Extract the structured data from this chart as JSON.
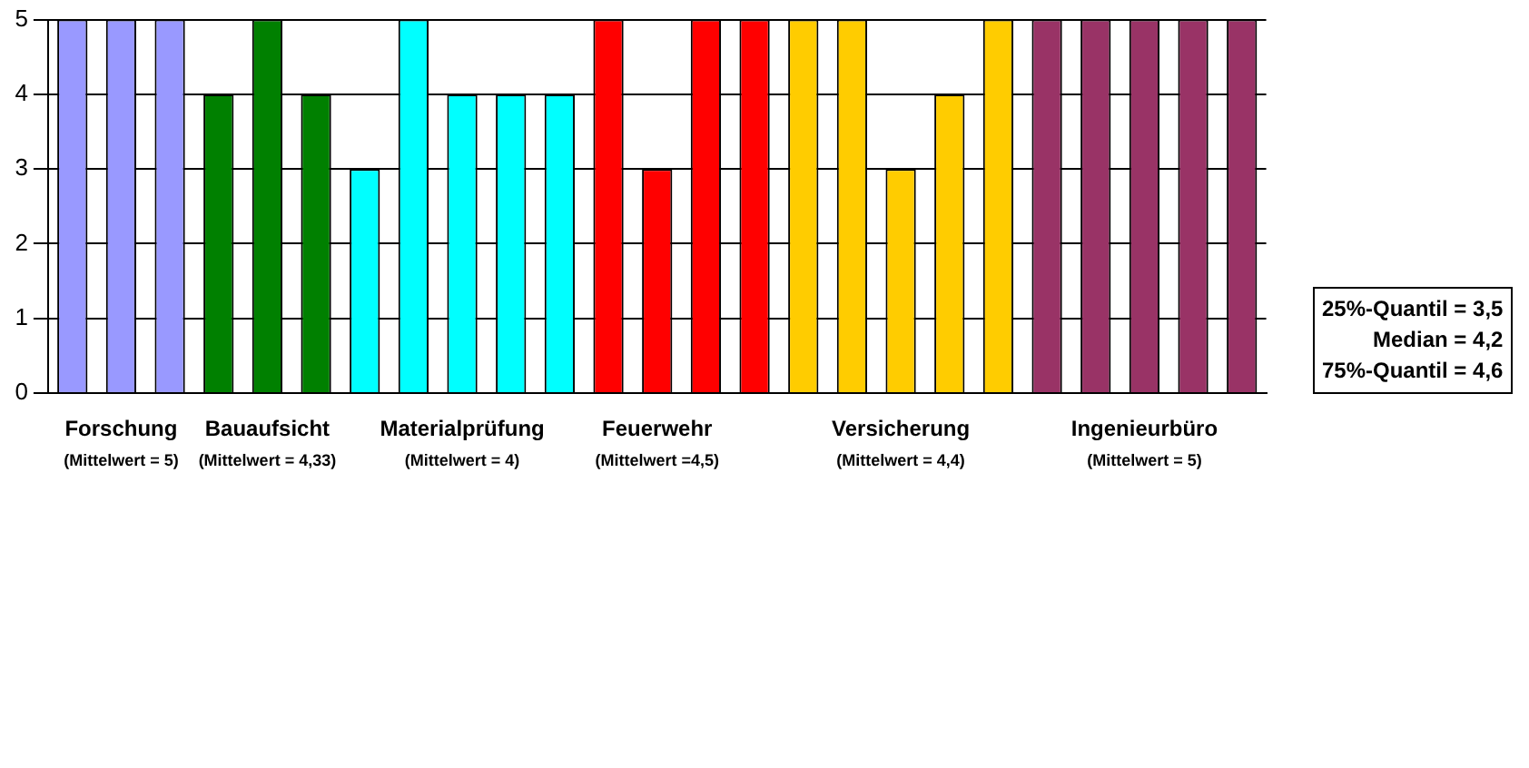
{
  "chart_data": {
    "type": "bar",
    "categories": [
      null,
      "Forschung\n(Mittelwert = 5)",
      null,
      null,
      "Bauaufsicht\n(Mittelwert = 4,33)",
      null,
      null,
      null,
      "Materialprüfung\n(Mittelwert = 4)",
      null,
      null,
      null,
      "Feuerwehr\n(Mittelwert =4,5)",
      null,
      null,
      null,
      null,
      "Versicherung\n(Mittelwert = 4,4)",
      null,
      null,
      null,
      null,
      "Ingenieurbüro\n(Mittelwert = 5)",
      null,
      null
    ],
    "values": [
      5,
      5,
      5,
      4,
      5,
      4,
      3,
      5,
      4,
      4,
      4,
      5,
      3,
      5,
      5,
      5,
      5,
      3,
      4,
      5,
      5,
      5,
      5,
      5,
      5
    ],
    "colors": [
      "#9999ff",
      "#9999ff",
      "#9999ff",
      "#008000",
      "#008000",
      "#008000",
      "#00ffff",
      "#00ffff",
      "#00ffff",
      "#00ffff",
      "#00ffff",
      "#ff0000",
      "#ff0000",
      "#ff0000",
      "#ff0000",
      "#ffcc00",
      "#ffcc00",
      "#ffcc00",
      "#ffcc00",
      "#ffcc00",
      "#993366",
      "#993366",
      "#993366",
      "#993366",
      "#993366"
    ],
    "ylim": [
      0,
      5
    ],
    "yticks": [
      0,
      1,
      2,
      3,
      4,
      5
    ],
    "grid": "y",
    "legend": false,
    "annotations": [
      "25%-Quantil = 3,5\nMedian = 4,2\n75%-Quantil = 4,6"
    ]
  }
}
